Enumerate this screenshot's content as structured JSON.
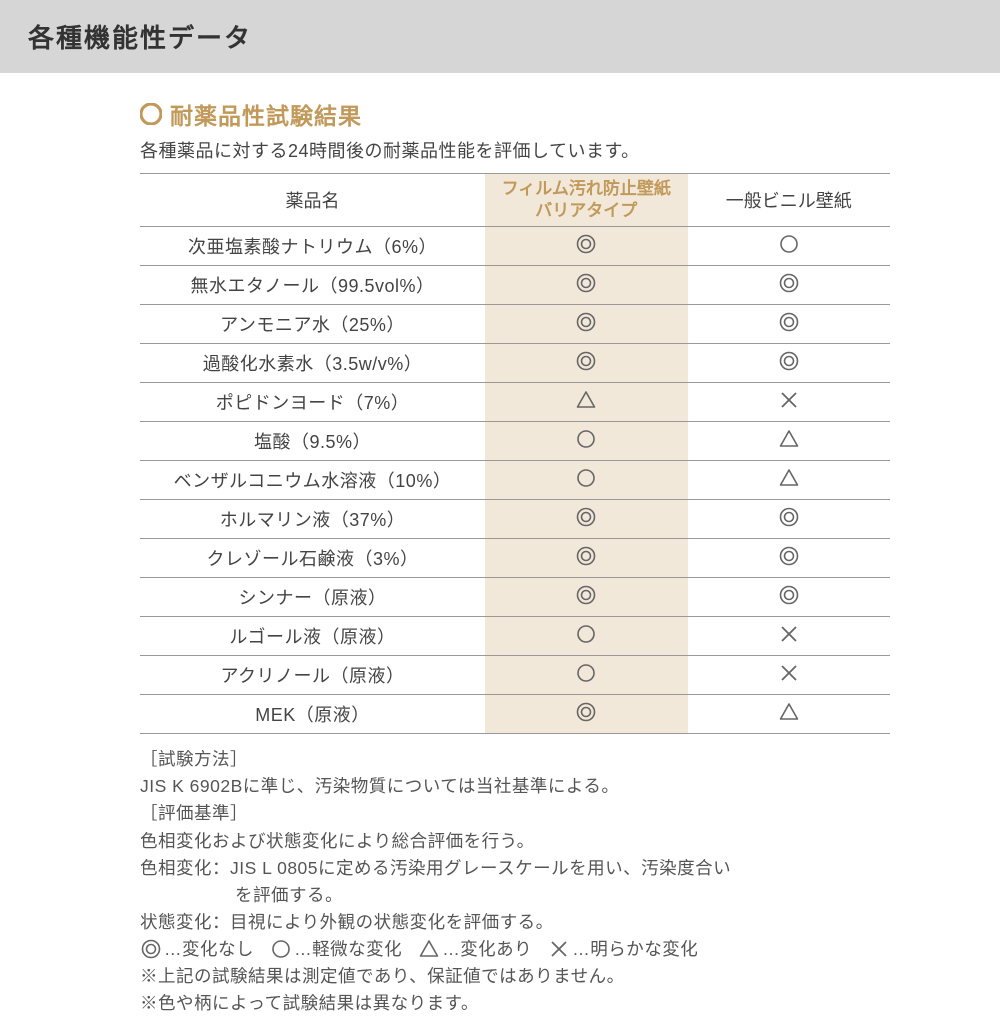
{
  "colors": {
    "header_bg": "#d6d6d6",
    "text": "#333333",
    "body_text": "#444444",
    "accent": "#c19a5b",
    "highlight_bg": "#f2e8d9",
    "border": "#999999",
    "symbol": "#666666",
    "notes_text": "#555555"
  },
  "header": {
    "title": "各種機能性データ"
  },
  "section": {
    "title": "耐薬品性試験結果",
    "intro": "各種薬品に対する24時間後の耐薬品性能を評価しています。"
  },
  "table": {
    "columns": {
      "name": "薬品名",
      "col1_line1": "フィルム汚れ防止壁紙",
      "col1_line2": "バリアタイプ",
      "col2": "一般ビニル壁紙"
    },
    "rows": [
      {
        "name": "次亜塩素酸ナトリウム（6%）",
        "c1": "double",
        "c2": "single"
      },
      {
        "name": "無水エタノール（99.5vol%）",
        "c1": "double",
        "c2": "double"
      },
      {
        "name": "アンモニア水（25%）",
        "c1": "double",
        "c2": "double"
      },
      {
        "name": "過酸化水素水（3.5w/v%）",
        "c1": "double",
        "c2": "double"
      },
      {
        "name": "ポピドンヨード（7%）",
        "c1": "triangle",
        "c2": "cross"
      },
      {
        "name": "塩酸（9.5%）",
        "c1": "single",
        "c2": "triangle"
      },
      {
        "name": "ベンザルコニウム水溶液（10%）",
        "c1": "single",
        "c2": "triangle"
      },
      {
        "name": "ホルマリン液（37%）",
        "c1": "double",
        "c2": "double"
      },
      {
        "name": "クレゾール石鹸液（3%）",
        "c1": "double",
        "c2": "double"
      },
      {
        "name": "シンナー（原液）",
        "c1": "double",
        "c2": "double"
      },
      {
        "name": "ルゴール液（原液）",
        "c1": "single",
        "c2": "cross"
      },
      {
        "name": "アクリノール（原液）",
        "c1": "single",
        "c2": "cross"
      },
      {
        "name": "MEK（原液）",
        "c1": "double",
        "c2": "triangle"
      }
    ]
  },
  "notes": {
    "l1": "［試験方法］",
    "l2": "JIS K 6902Bに準じ、汚染物質については当社基準による。",
    "l3": "［評価基準］",
    "l4": "色相変化および状態変化により総合評価を行う。",
    "l5": "色相変化：JIS L 0805に定める汚染用グレースケールを用い、汚染度合い",
    "l5b": "を評価する。",
    "l6": "状態変化：目視により外観の状態変化を評価する。",
    "legend": {
      "a": "…変化なし",
      "b": "…軽微な変化",
      "c": "…変化あり",
      "d": "…明らかな変化"
    },
    "l8": "※上記の試験結果は測定値であり、保証値ではありません。",
    "l9": "※色や柄によって試験結果は異なります。"
  }
}
